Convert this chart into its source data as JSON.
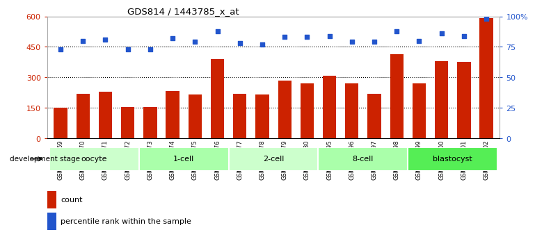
{
  "title": "GDS814 / 1443785_x_at",
  "samples": [
    "GSM22669",
    "GSM22670",
    "GSM22671",
    "GSM22672",
    "GSM22673",
    "GSM22674",
    "GSM22675",
    "GSM22676",
    "GSM22677",
    "GSM22678",
    "GSM22679",
    "GSM22680",
    "GSM22695",
    "GSM22696",
    "GSM22697",
    "GSM22698",
    "GSM22699",
    "GSM22700",
    "GSM22701",
    "GSM22702"
  ],
  "counts": [
    150,
    220,
    230,
    155,
    155,
    235,
    215,
    390,
    220,
    215,
    285,
    270,
    310,
    270,
    220,
    415,
    270,
    380,
    375,
    590
  ],
  "percentiles": [
    73,
    80,
    81,
    73,
    73,
    82,
    79,
    88,
    78,
    77,
    83,
    83,
    84,
    79,
    79,
    88,
    80,
    86,
    84,
    98
  ],
  "bar_color": "#cc2200",
  "dot_color": "#2255cc",
  "ylim_left": [
    0,
    600
  ],
  "ylim_right": [
    0,
    100
  ],
  "yticks_left": [
    0,
    150,
    300,
    450,
    600
  ],
  "yticks_right": [
    0,
    25,
    50,
    75,
    100
  ],
  "ytick_labels_right": [
    "0",
    "25",
    "50",
    "75",
    "100%"
  ],
  "groups": [
    {
      "label": "oocyte",
      "start": 0,
      "end": 3,
      "color": "#ccffcc"
    },
    {
      "label": "1-cell",
      "start": 4,
      "end": 7,
      "color": "#aaffaa"
    },
    {
      "label": "2-cell",
      "start": 8,
      "end": 11,
      "color": "#ccffcc"
    },
    {
      "label": "8-cell",
      "start": 12,
      "end": 15,
      "color": "#aaffaa"
    },
    {
      "label": "blastocyst",
      "start": 16,
      "end": 19,
      "color": "#55ee55"
    }
  ],
  "legend_count_label": "count",
  "legend_pct_label": "percentile rank within the sample",
  "dev_stage_label": "development stage"
}
